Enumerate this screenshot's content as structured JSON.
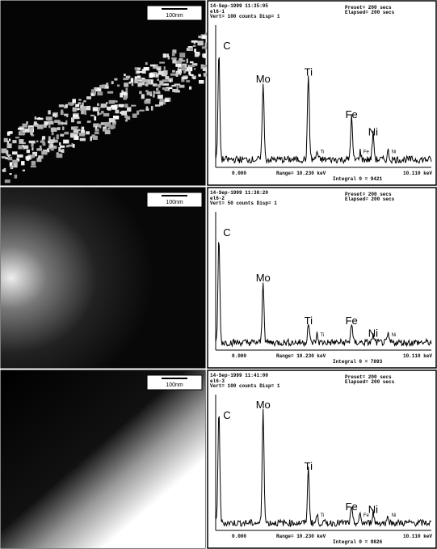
{
  "panels": [
    {
      "micrograph": {
        "scale_bar": "100nm"
      },
      "spectrum": {
        "timestamp": "14-Sep-1999 11:35:05",
        "sample": "el6-1",
        "vert": "Vert= 100 counts  Disp= 1",
        "preset": "Preset=   200 secs",
        "elapsed": "Elapsed=  200 secs",
        "start": "0.000",
        "range": "Range= 10.230 keV",
        "end": "10.110 keV",
        "integral": "Integral 0 =  9421",
        "peaks": [
          "C",
          "Mo",
          "Ti",
          "Fe",
          "Ni"
        ],
        "minor_peaks": [
          "Ti",
          "Fe",
          "Ni"
        ]
      }
    },
    {
      "micrograph": {
        "scale_bar": "100nm"
      },
      "spectrum": {
        "timestamp": "14-Sep-1999 11:38:20",
        "sample": "el6-2",
        "vert": "Vert= 50 counts  Disp= 1",
        "preset": "Preset=   200 secs",
        "elapsed": "Elapsed=  200 secs",
        "start": "0.000",
        "range": "Range= 10.230 keV",
        "end": "10.110 keV",
        "integral": "Integral 0 =  7893",
        "peaks": [
          "C",
          "Mo",
          "Ti",
          "Fe",
          "Ni"
        ],
        "minor_peaks": [
          "Ti",
          "Ni"
        ]
      }
    },
    {
      "micrograph": {
        "scale_bar": "100nm"
      },
      "spectrum": {
        "timestamp": "14-Sep-1999 11:41:00",
        "sample": "el6-3",
        "vert": "Vert= 100 counts  Disp= 1",
        "preset": "Preset=   200 secs",
        "elapsed": "Elapsed=  200 secs",
        "start": "0.000",
        "range": "Range= 10.230 keV",
        "end": "10.110 keV",
        "integral": "Integral 0 =  9826",
        "peaks": [
          "C",
          "Mo",
          "Ti",
          "Fe",
          "Ni"
        ],
        "minor_peaks": [
          "Ti",
          "Fe",
          "Ni"
        ]
      }
    }
  ]
}
